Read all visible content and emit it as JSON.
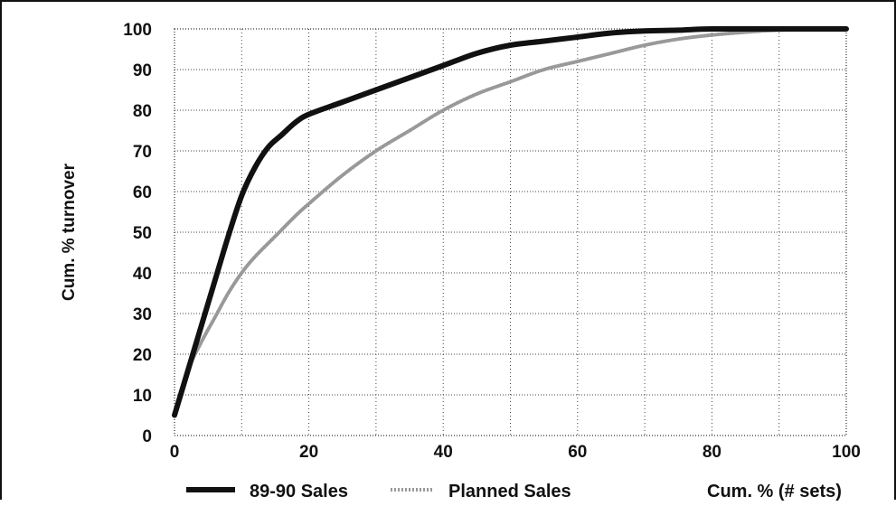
{
  "chart_data": {
    "type": "line",
    "title": "",
    "xlabel": "Cum. % (# sets)",
    "ylabel": "Cum. % turnover",
    "xlim": [
      0,
      100
    ],
    "ylim": [
      0,
      100
    ],
    "x_ticks": [
      "0",
      "20",
      "40",
      "60",
      "80",
      "100"
    ],
    "y_ticks": [
      "0",
      "10",
      "20",
      "30",
      "40",
      "50",
      "60",
      "70",
      "80",
      "90",
      "100"
    ],
    "grid": true,
    "legend_position": "bottom",
    "series": [
      {
        "name": "89-90 Sales",
        "style": "solid-thick",
        "color": "#111111",
        "x": [
          0,
          2,
          4,
          6,
          8,
          10,
          12,
          14,
          16,
          18,
          20,
          25,
          30,
          35,
          40,
          45,
          50,
          55,
          60,
          65,
          70,
          75,
          80,
          90,
          100
        ],
        "y": [
          5,
          16,
          27,
          38,
          49,
          59,
          66,
          71,
          74,
          77,
          79,
          82,
          85,
          88,
          91,
          94,
          96,
          97,
          98,
          99,
          99.5,
          99.7,
          100,
          100,
          100
        ]
      },
      {
        "name": "Planned Sales",
        "style": "dotted",
        "color": "#999999",
        "x": [
          0,
          2,
          4,
          6,
          8,
          10,
          12,
          15,
          18,
          20,
          25,
          30,
          35,
          40,
          45,
          50,
          55,
          60,
          65,
          70,
          75,
          80,
          85,
          90,
          100
        ],
        "y": [
          5,
          16,
          23,
          29,
          35,
          40,
          44,
          49,
          54,
          57,
          64,
          70,
          75,
          80,
          84,
          87,
          90,
          92,
          94,
          96,
          97.5,
          98.5,
          99.2,
          99.7,
          100
        ]
      }
    ]
  }
}
